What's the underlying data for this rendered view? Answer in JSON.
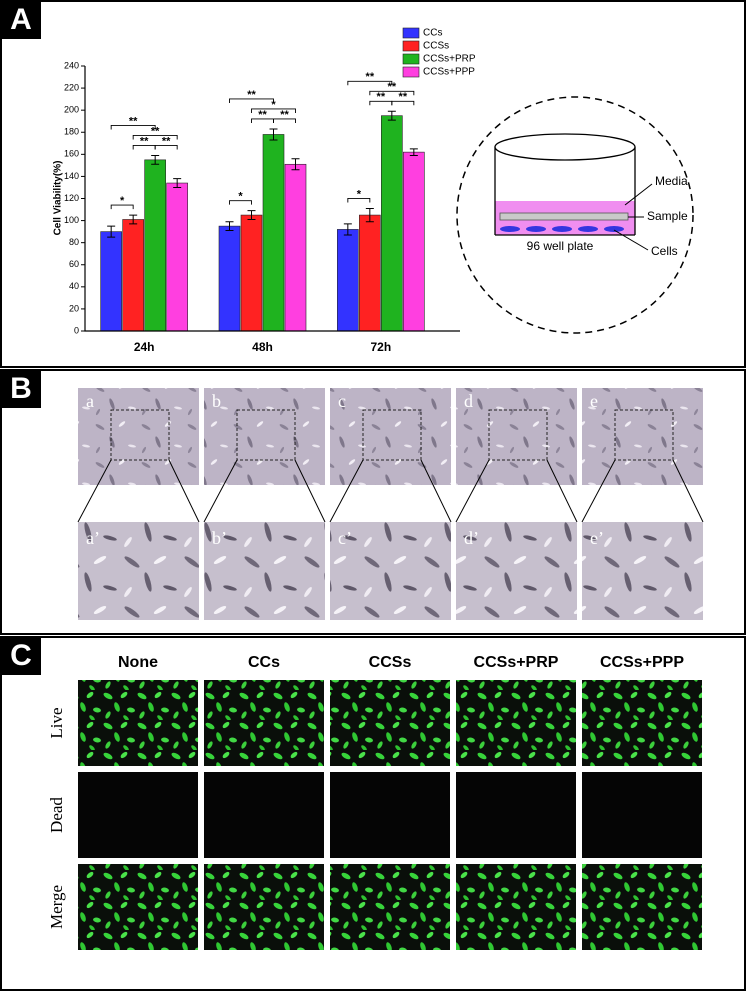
{
  "figure": {
    "panel_labels": [
      "A",
      "B",
      "C"
    ]
  },
  "chart_data": {
    "type": "bar",
    "y_label": "Cell Viability(%)",
    "categories": [
      "24h",
      "48h",
      "72h"
    ],
    "series": [
      {
        "name": "CCs",
        "color": "#3333ff",
        "values": [
          90,
          95,
          92
        ],
        "errors": [
          5,
          4,
          5
        ]
      },
      {
        "name": "CCSs",
        "color": "#ff2222",
        "values": [
          101,
          105,
          105
        ],
        "errors": [
          4,
          4,
          6
        ]
      },
      {
        "name": "CCSs+PRP",
        "color": "#1fb31f",
        "values": [
          155,
          178,
          195
        ],
        "errors": [
          4,
          5,
          4
        ]
      },
      {
        "name": "CCSs+PPP",
        "color": "#ff3fe0",
        "values": [
          134,
          151,
          162
        ],
        "errors": [
          4,
          5,
          3
        ]
      }
    ],
    "ylim": [
      0,
      240
    ],
    "yticks": [
      0,
      20,
      40,
      60,
      80,
      100,
      120,
      140,
      160,
      180,
      200,
      220,
      240
    ],
    "significance": [
      [
        {
          "label": "*",
          "span": [
            0,
            1
          ]
        },
        {
          "label": "**",
          "span": [
            2,
            3
          ]
        },
        {
          "label": "**",
          "span": [
            1,
            2
          ]
        },
        {
          "label": "**",
          "span": [
            1,
            3
          ]
        },
        {
          "label": "**",
          "span": [
            0,
            2
          ]
        }
      ],
      [
        {
          "label": "*",
          "span": [
            0,
            1
          ]
        },
        {
          "label": "**",
          "span": [
            2,
            3
          ]
        },
        {
          "label": "**",
          "span": [
            1,
            2
          ]
        },
        {
          "label": "*",
          "span": [
            1,
            3
          ]
        },
        {
          "label": "**",
          "span": [
            0,
            2
          ]
        }
      ],
      [
        {
          "label": "*",
          "span": [
            0,
            1
          ]
        },
        {
          "label": "**",
          "span": [
            2,
            3
          ]
        },
        {
          "label": "**",
          "span": [
            1,
            2
          ]
        },
        {
          "label": "**",
          "span": [
            1,
            3
          ]
        },
        {
          "label": "**",
          "span": [
            0,
            2
          ]
        }
      ]
    ]
  },
  "diagram": {
    "media": "Media",
    "sample": "Sample",
    "cells": "Cells",
    "plate": "96 well plate"
  },
  "panel_b": {
    "top_labels": [
      "a",
      "b",
      "c",
      "d",
      "e"
    ],
    "bottom_labels": [
      "a’",
      "b’",
      "c’",
      "d’",
      "e’"
    ]
  },
  "panel_c": {
    "columns": [
      "None",
      "CCs",
      "CCSs",
      "CCSs+PRP",
      "CCSs+PPP"
    ],
    "rows": [
      "Live",
      "Dead",
      "Merge"
    ]
  }
}
